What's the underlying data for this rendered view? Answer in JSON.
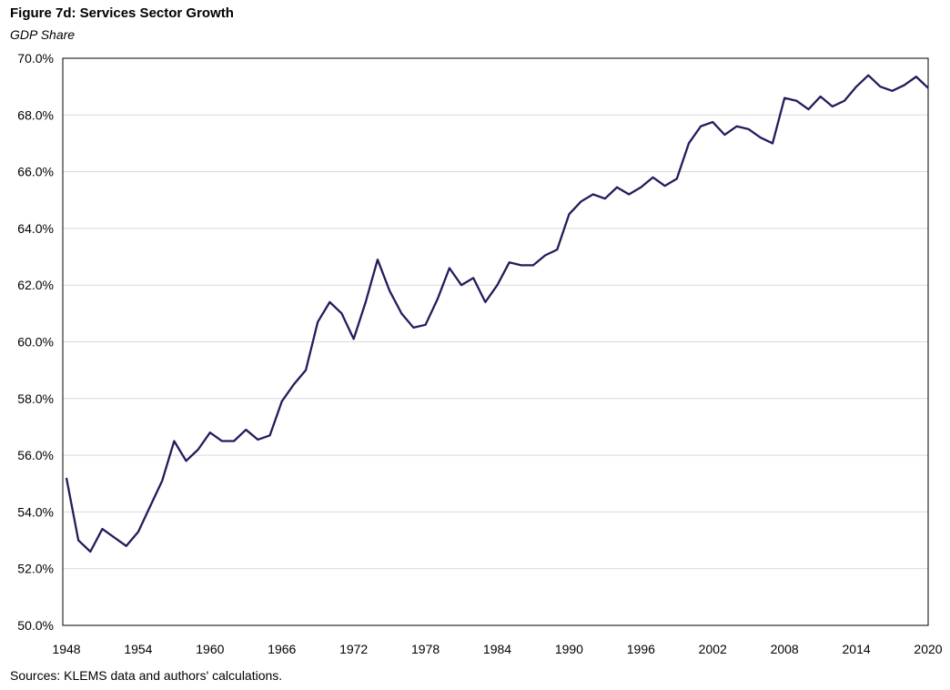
{
  "title": "Figure 7d: Services Sector Growth",
  "subtitle": "GDP Share",
  "source": "Sources: KLEMS data and authors' calculations.",
  "line_color": "#221c5c",
  "chart_data": {
    "type": "line",
    "x_ticks": [
      "1948",
      "1954",
      "1960",
      "1966",
      "1972",
      "1978",
      "1984",
      "1990",
      "1996",
      "2002",
      "2008",
      "2014",
      "2020"
    ],
    "y_ticks": [
      "50.0%",
      "52.0%",
      "54.0%",
      "56.0%",
      "58.0%",
      "60.0%",
      "62.0%",
      "64.0%",
      "66.0%",
      "68.0%",
      "70.0%"
    ],
    "ylim": [
      50,
      70
    ],
    "xlim": [
      1948,
      2020
    ],
    "grid": true,
    "series": [
      {
        "x": [
          1948,
          1949,
          1950,
          1951,
          1952,
          1953,
          1954,
          1955,
          1956,
          1957,
          1958,
          1959,
          1960,
          1961,
          1962,
          1963,
          1964,
          1965,
          1966,
          1967,
          1968,
          1969,
          1970,
          1971,
          1972,
          1973,
          1974,
          1975,
          1976,
          1977,
          1978,
          1979,
          1980,
          1981,
          1982,
          1983,
          1984,
          1985,
          1986,
          1987,
          1988,
          1989,
          1990,
          1991,
          1992,
          1993,
          1994,
          1995,
          1996,
          1997,
          1998,
          1999,
          2000,
          2001,
          2002,
          2003,
          2004,
          2005,
          2006,
          2007,
          2008,
          2009,
          2010,
          2011,
          2012,
          2013,
          2014,
          2015,
          2016,
          2017,
          2018,
          2019,
          2020
        ],
        "values": [
          55.2,
          53.0,
          52.6,
          53.4,
          53.1,
          52.8,
          53.3,
          54.2,
          55.1,
          56.5,
          55.8,
          56.2,
          56.8,
          56.5,
          56.5,
          56.9,
          56.55,
          56.7,
          57.9,
          58.5,
          59.0,
          60.7,
          61.4,
          61.0,
          60.1,
          61.4,
          62.9,
          61.8,
          61.0,
          60.5,
          60.6,
          61.5,
          62.6,
          62.0,
          62.25,
          61.4,
          62.0,
          62.8,
          62.7,
          62.7,
          63.05,
          63.25,
          64.5,
          64.95,
          65.2,
          65.05,
          65.45,
          65.2,
          65.45,
          65.8,
          65.5,
          65.75,
          67.0,
          67.6,
          67.75,
          67.3,
          67.6,
          67.5,
          67.2,
          67.0,
          68.6,
          68.5,
          68.2,
          68.65,
          68.3,
          68.5,
          69.0,
          69.4,
          69.0,
          68.85,
          69.05,
          69.35,
          68.95
        ]
      }
    ]
  }
}
